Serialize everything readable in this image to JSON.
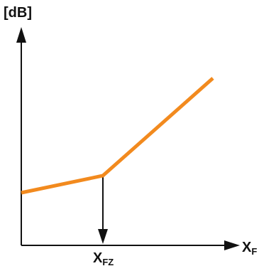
{
  "diagram": {
    "y_axis_label": "[dB]",
    "x_axis_label": {
      "main": "X",
      "sub": "F"
    },
    "marker_label": {
      "main": "X",
      "sub": "FZ"
    },
    "colors": {
      "curve": "#f28a1e",
      "axes": "#111111",
      "background": "#ffffff"
    }
  }
}
